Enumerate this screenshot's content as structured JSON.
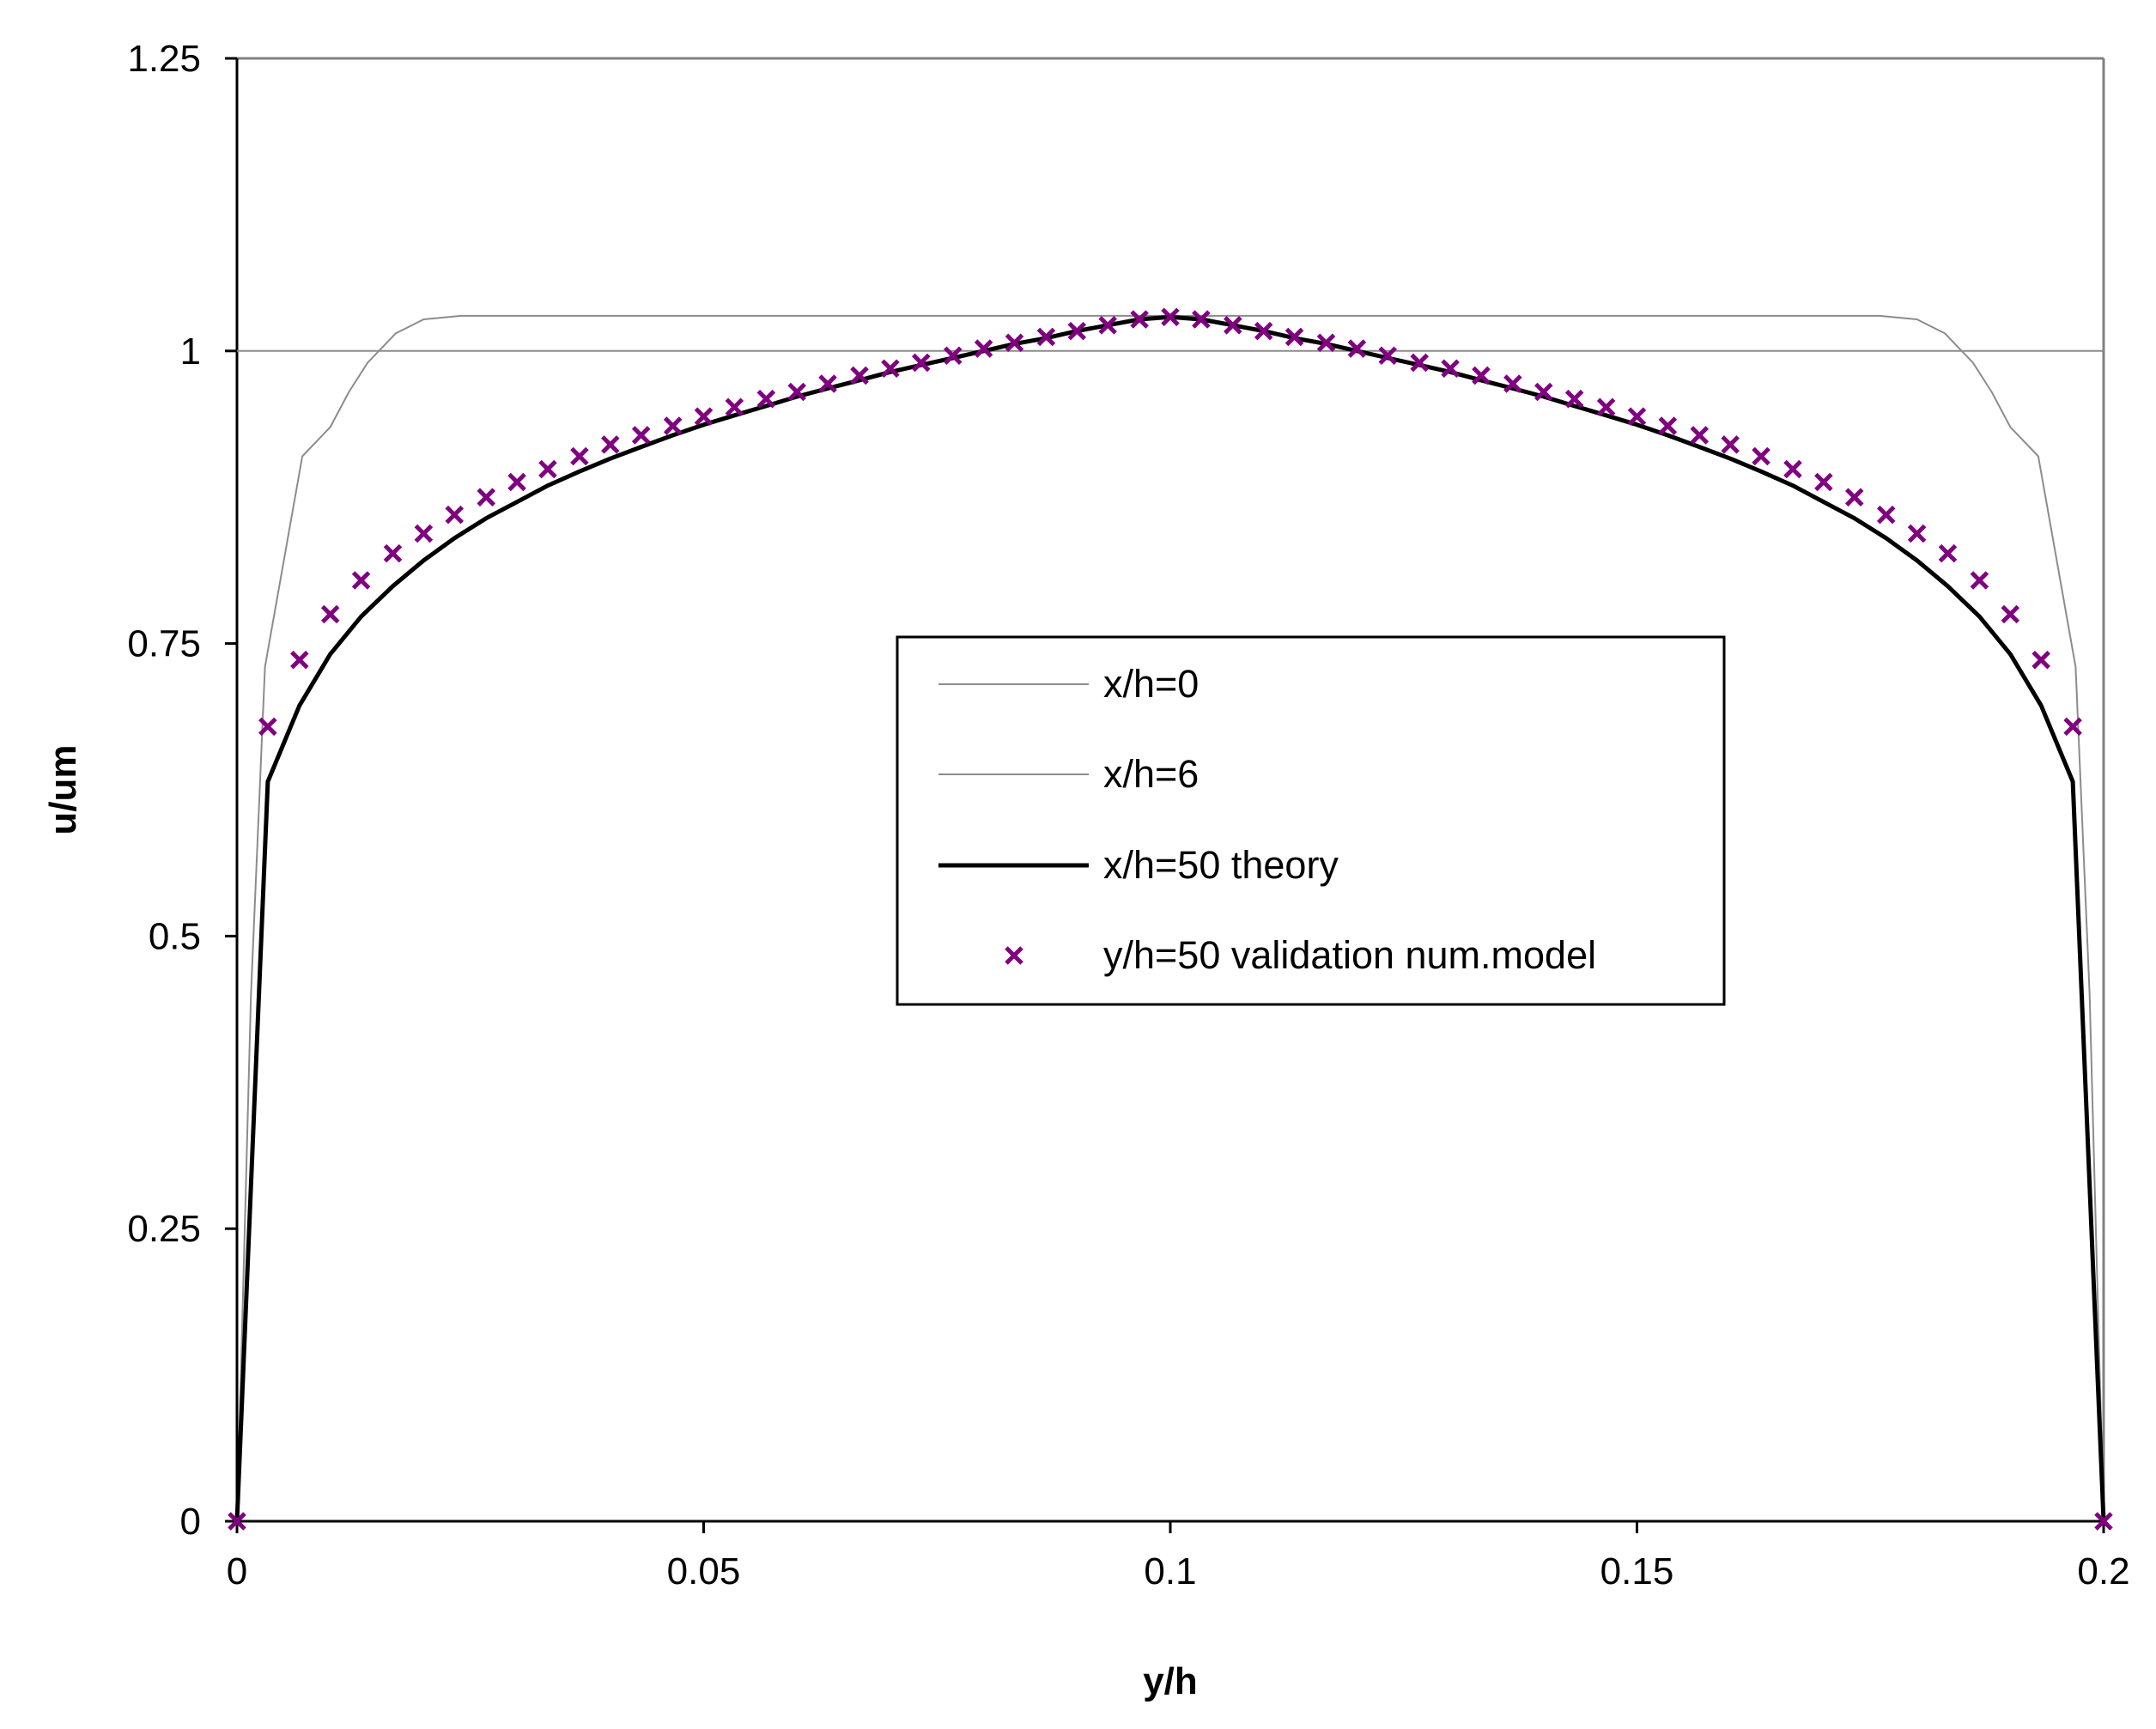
{
  "chart_data": {
    "type": "line",
    "xlabel": "y/h",
    "ylabel": "u/um",
    "xlim": [
      0,
      0.2
    ],
    "ylim": [
      0,
      1.25
    ],
    "x_ticks": [
      "0",
      "0.05",
      "0.1",
      "0.15",
      "0.2"
    ],
    "y_ticks": [
      "0",
      "0.25",
      "0.5",
      "0.75",
      "1",
      "1.25"
    ],
    "grid": false,
    "legend_position": "center-right",
    "series": [
      {
        "name": "x/h=0",
        "style": "thin-line",
        "color": "#8c8c8c",
        "x": [
          0,
          0.2
        ],
        "y": [
          1,
          1
        ]
      },
      {
        "name": "x/h=6",
        "style": "thin-line",
        "color": "#8c8c8c",
        "x": [
          0,
          0.0015,
          0.003,
          0.007,
          0.01,
          0.012,
          0.014,
          0.017,
          0.02,
          0.024,
          0.03,
          0.1,
          0.17,
          0.176,
          0.18,
          0.183,
          0.186,
          0.188,
          0.19,
          0.193,
          0.197,
          0.1985,
          0.2
        ],
        "y": [
          0,
          0.45,
          0.73,
          0.91,
          0.935,
          0.965,
          0.99,
          1.015,
          1.027,
          1.03,
          1.03,
          1.03,
          1.03,
          1.03,
          1.027,
          1.015,
          0.99,
          0.965,
          0.935,
          0.91,
          0.73,
          0.45,
          0
        ]
      },
      {
        "name": "x/h=50 theory",
        "style": "thick-line",
        "color": "#000000",
        "x": [
          0,
          0.0033,
          0.0067,
          0.01,
          0.0133,
          0.0167,
          0.02,
          0.0233,
          0.0267,
          0.03,
          0.0333,
          0.0367,
          0.04,
          0.0433,
          0.0467,
          0.05,
          0.0533,
          0.0567,
          0.06,
          0.0633,
          0.0667,
          0.07,
          0.0733,
          0.0767,
          0.08,
          0.0833,
          0.0867,
          0.09,
          0.0933,
          0.0967,
          0.1,
          0.1033,
          0.1067,
          0.11,
          0.1133,
          0.1167,
          0.12,
          0.1233,
          0.1267,
          0.13,
          0.1333,
          0.1367,
          0.14,
          0.1433,
          0.1467,
          0.15,
          0.1533,
          0.1567,
          0.16,
          0.1633,
          0.1667,
          0.17,
          0.1733,
          0.1767,
          0.18,
          0.1833,
          0.1867,
          0.19,
          0.1933,
          0.1967,
          0.2
        ],
        "y": [
          0,
          0.632,
          0.697,
          0.741,
          0.773,
          0.799,
          0.821,
          0.84,
          0.857,
          0.871,
          0.885,
          0.897,
          0.908,
          0.918,
          0.928,
          0.937,
          0.945,
          0.953,
          0.961,
          0.968,
          0.975,
          0.982,
          0.988,
          0.994,
          1.0,
          1.006,
          1.011,
          1.017,
          1.022,
          1.027,
          1.029,
          1.027,
          1.022,
          1.017,
          1.011,
          1.006,
          1.0,
          0.994,
          0.988,
          0.982,
          0.975,
          0.968,
          0.961,
          0.953,
          0.945,
          0.937,
          0.928,
          0.918,
          0.908,
          0.897,
          0.885,
          0.871,
          0.857,
          0.84,
          0.821,
          0.799,
          0.773,
          0.741,
          0.697,
          0.632,
          0
        ]
      },
      {
        "name": "y/h=50 validation num.model",
        "style": "markers",
        "color": "#800080",
        "marker": "x",
        "x": [
          0,
          0.0033,
          0.0067,
          0.01,
          0.0133,
          0.0167,
          0.02,
          0.0233,
          0.0267,
          0.03,
          0.0333,
          0.0367,
          0.04,
          0.0433,
          0.0467,
          0.05,
          0.0533,
          0.0567,
          0.06,
          0.0633,
          0.0667,
          0.07,
          0.0733,
          0.0767,
          0.08,
          0.0833,
          0.0867,
          0.09,
          0.0933,
          0.0967,
          0.1,
          0.1033,
          0.1067,
          0.11,
          0.1133,
          0.1167,
          0.12,
          0.1233,
          0.1267,
          0.13,
          0.1333,
          0.1367,
          0.14,
          0.1433,
          0.1467,
          0.15,
          0.1533,
          0.1567,
          0.16,
          0.1633,
          0.1667,
          0.17,
          0.1733,
          0.1767,
          0.18,
          0.1833,
          0.1867,
          0.19,
          0.1933,
          0.1967,
          0.2
        ],
        "y": [
          0,
          0.679,
          0.736,
          0.775,
          0.804,
          0.827,
          0.844,
          0.86,
          0.875,
          0.888,
          0.899,
          0.91,
          0.92,
          0.928,
          0.936,
          0.944,
          0.952,
          0.959,
          0.965,
          0.972,
          0.979,
          0.985,
          0.99,
          0.996,
          1.002,
          1.007,
          1.012,
          1.017,
          1.022,
          1.027,
          1.029,
          1.027,
          1.022,
          1.017,
          1.012,
          1.007,
          1.002,
          0.996,
          0.99,
          0.985,
          0.979,
          0.972,
          0.965,
          0.959,
          0.952,
          0.944,
          0.936,
          0.928,
          0.92,
          0.91,
          0.899,
          0.888,
          0.875,
          0.86,
          0.844,
          0.827,
          0.804,
          0.775,
          0.736,
          0.679,
          0
        ]
      }
    ]
  }
}
